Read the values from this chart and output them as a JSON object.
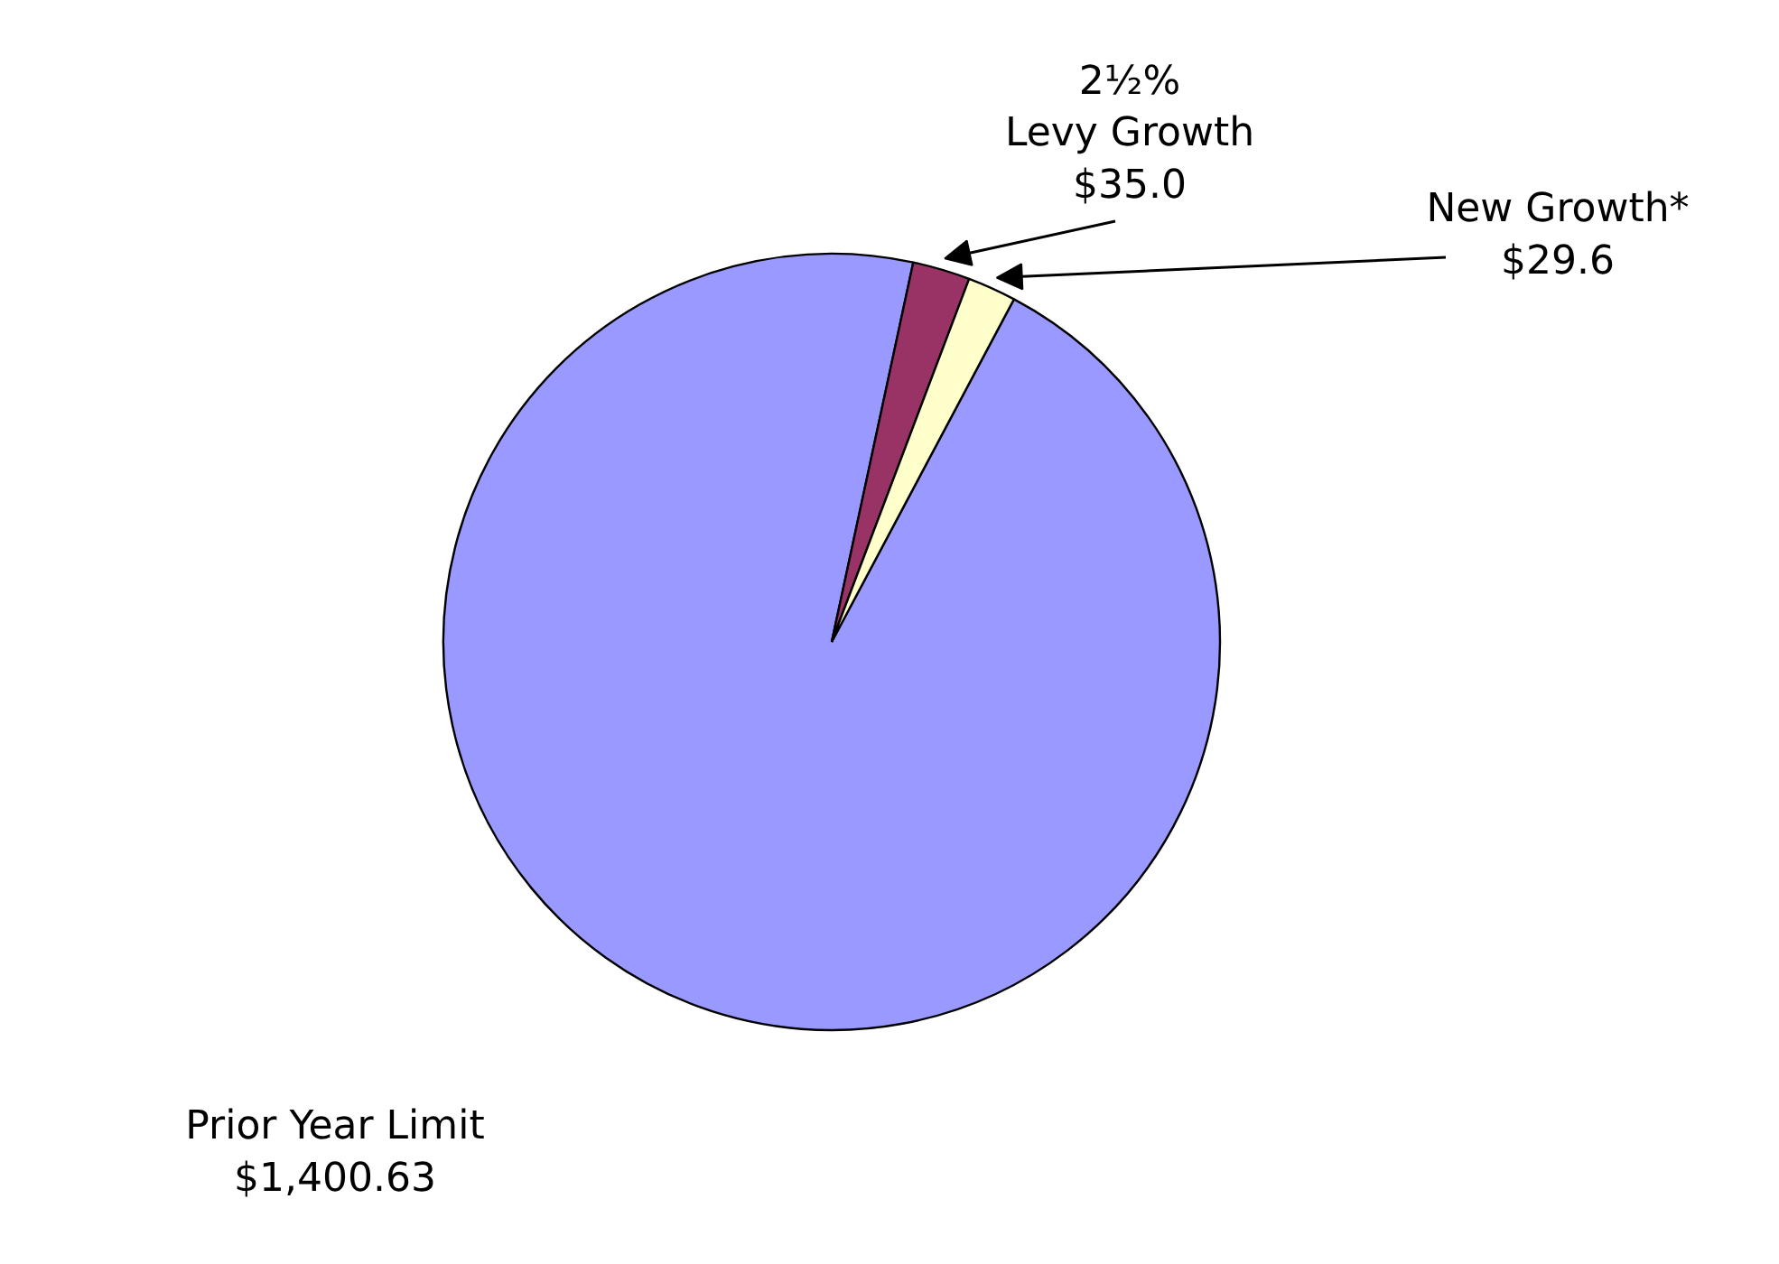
{
  "chart_data": {
    "type": "pie",
    "categories": [
      "Prior Year Limit",
      "2½%\nLevy Growth",
      "New Growth*"
    ],
    "values": [
      1400.63,
      35.0,
      29.6
    ],
    "colors": [
      "#9999ff",
      "#993366",
      "#ffffcc"
    ],
    "value_labels": [
      "$1,400.63",
      "$35.0",
      "$29.6"
    ]
  }
}
